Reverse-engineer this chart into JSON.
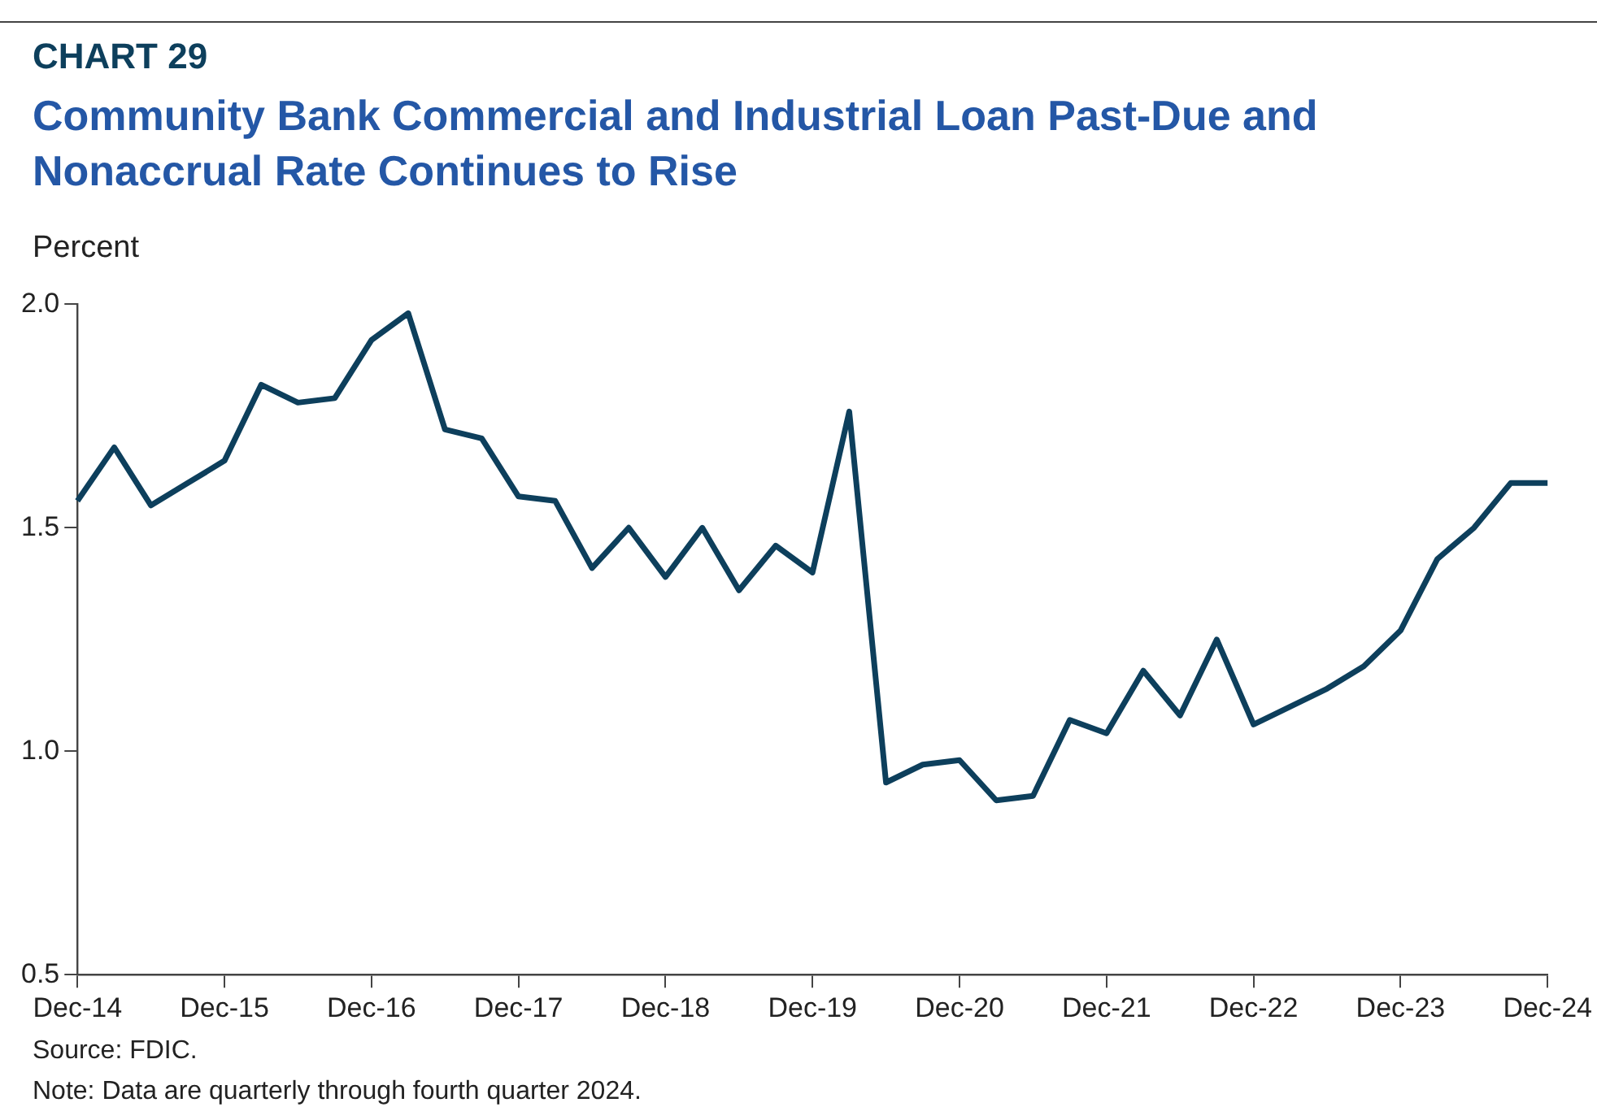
{
  "chart_data": {
    "type": "line",
    "title": "CHART 29",
    "subtitle": "Community Bank Commercial and Industrial Loan Past-Due and Nonaccrual Rate Continues to Rise",
    "ylabel": "Percent",
    "categories": [
      "Dec-14",
      null,
      null,
      null,
      "Dec-15",
      null,
      null,
      null,
      "Dec-16",
      null,
      null,
      null,
      "Dec-17",
      null,
      null,
      null,
      "Dec-18",
      null,
      null,
      null,
      "Dec-19",
      null,
      null,
      null,
      "Dec-20",
      null,
      null,
      null,
      "Dec-21",
      null,
      null,
      null,
      "Dec-22",
      null,
      null,
      null,
      "Dec-23",
      null,
      null,
      null,
      "Dec-24"
    ],
    "series": [
      {
        "color": "#0d3f5c",
        "values": [
          1.56,
          1.68,
          1.55,
          1.6,
          1.65,
          1.82,
          1.78,
          1.79,
          1.92,
          1.98,
          1.72,
          1.7,
          1.57,
          1.56,
          1.41,
          1.5,
          1.39,
          1.5,
          1.36,
          1.46,
          1.4,
          1.76,
          0.93,
          0.97,
          0.98,
          0.89,
          0.9,
          1.07,
          1.04,
          1.18,
          1.08,
          1.25,
          1.06,
          1.1,
          1.14,
          1.19,
          1.27,
          1.43,
          1.5,
          1.6,
          1.6
        ]
      }
    ],
    "ylim": [
      0.5,
      2.0
    ],
    "yticks": [
      {
        "value": 0.5,
        "label": "0.5"
      },
      {
        "value": 1.0,
        "label": "1.0"
      },
      {
        "value": 1.5,
        "label": "1.5"
      },
      {
        "value": 2.0,
        "label": "2.0"
      }
    ],
    "grid": false,
    "legend": false,
    "marker": "none",
    "line_style": "solid",
    "annotations": [
      "Source: FDIC.",
      "Note: Data are quarterly through fourth quarter 2024."
    ]
  }
}
